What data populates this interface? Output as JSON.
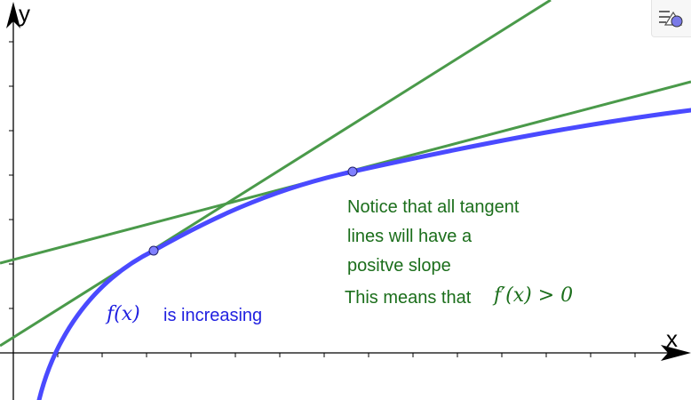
{
  "axes": {
    "x_label": "x",
    "y_label": "y"
  },
  "annotations": {
    "function_name": "f(x)",
    "increasing_text": "is increasing",
    "notice_line1": "Notice that all tangent",
    "notice_line2": "lines will have a",
    "notice_line3": "positve slope",
    "means_text": "This means that",
    "derivative_inequality": "f′(x) > 0"
  },
  "icons": {
    "menu": "graphics-menu-icon"
  },
  "colors": {
    "curve": "#4a4aff",
    "tangent": "#4a9a4a",
    "point": "#8080ff",
    "text_green": "#1b6e1b",
    "text_blue": "#1f1fe0"
  }
}
